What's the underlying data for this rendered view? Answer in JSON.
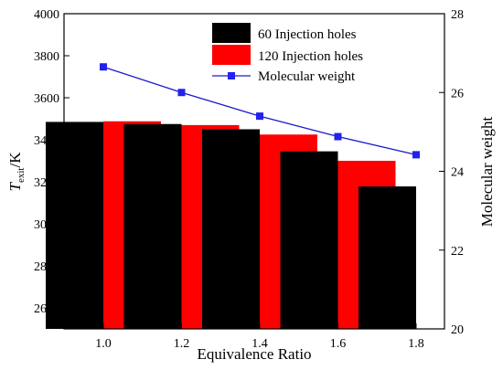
{
  "chart_data": {
    "type": "bar",
    "x_title": "Equivalence Ratio",
    "y_left_title_main": "T",
    "y_left_title_sub": "exit",
    "y_left_title_suffix": "/K",
    "y_right_title": "Molecular weight",
    "categories": [
      "1.0",
      "1.2",
      "1.4",
      "1.6",
      "1.8"
    ],
    "y_left": {
      "min": 2500,
      "max": 4000,
      "ticks": [
        2600,
        2800,
        3000,
        3200,
        3400,
        3600,
        3800,
        4000
      ]
    },
    "y_right": {
      "min": 20,
      "max": 28,
      "ticks": [
        20,
        22,
        24,
        26,
        28
      ]
    },
    "series": [
      {
        "name": "60 Injection holes",
        "type": "bar",
        "axis": "left",
        "color": "#000000",
        "values": [
          3485,
          3475,
          3450,
          3345,
          3178
        ]
      },
      {
        "name": "120 Injection holes",
        "type": "bar",
        "axis": "left",
        "color": "#ff0000",
        "values": [
          3488,
          3470,
          3425,
          3300,
          null
        ]
      },
      {
        "name": "Molecular weight",
        "type": "line",
        "axis": "right",
        "color": "#1a1acc",
        "marker": "square",
        "values": [
          26.65,
          26.0,
          25.4,
          24.88,
          24.42
        ]
      }
    ],
    "legend": {
      "position": "top-right"
    },
    "grid": false
  }
}
